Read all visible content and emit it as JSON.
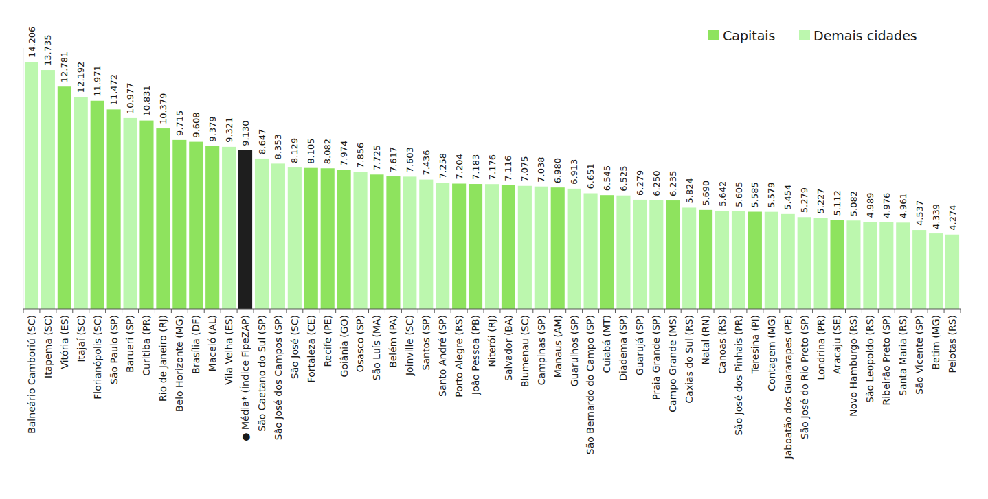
{
  "chart_data": {
    "type": "bar",
    "stacked": true,
    "data_labels": true,
    "tick_labels": "x",
    "legend": "top right",
    "ylim": [
      0,
      15000
    ],
    "categories": [
      "Balneário Camboriú (SC)",
      "Itapema (SC)",
      "Vitória (ES)",
      "Itajaí (SC)",
      "Florianópolis (SC)",
      "São Paulo (SP)",
      "Barueri (SP)",
      "Curitiba (PR)",
      "Rio de Janeiro (RJ)",
      "Belo Horizonte (MG)",
      "Brasília (DF)",
      "Maceió (AL)",
      "Vila Velha (ES)",
      "● Média* (Índice FipeZAP)",
      "São Caetano do Sul (SP)",
      "São José dos Campos (SP)",
      "São José (SC)",
      "Fortaleza (CE)",
      "Recife (PE)",
      "Goiânia (GO)",
      "Osasco (SP)",
      "São Luís (MA)",
      "Belém (PA)",
      "Joinville (SC)",
      "Santos (SP)",
      "Santo André (SP)",
      "Porto Alegre (RS)",
      "João Pessoa (PB)",
      "Niterói (RJ)",
      "Salvador (BA)",
      "Blumenau (SC)",
      "Campinas (SP)",
      "Manaus (AM)",
      "Guarulhos (SP)",
      "São Bernardo do Campo (SP)",
      "Cuiabá (MT)",
      "Diadema (SP)",
      "Guarujá (SP)",
      "Praia Grande (SP)",
      "Campo Grande (MS)",
      "Caxias do Sul (RS)",
      "Natal (RN)",
      "Canoas (RS)",
      "São José dos Pinhais (PR)",
      "Teresina (PI)",
      "Contagem (MG)",
      "Jaboatão dos Guararapes (PE)",
      "São José do Rio Preto (SP)",
      "Londrina (PR)",
      "Aracaju (SE)",
      "Novo Hamburgo (RS)",
      "São Leopoldo (RS)",
      "Ribeirão Preto (SP)",
      "Santa Maria (RS)",
      "São Vicente (SP)",
      "Betim (MG)",
      "Pelotas (RS)"
    ],
    "series": [
      {
        "name": "Capitais",
        "color": "#8ee35e",
        "values": [
          null,
          null,
          12781,
          null,
          11971,
          11472,
          null,
          10831,
          10379,
          9715,
          9608,
          9379,
          null,
          null,
          null,
          null,
          null,
          8105,
          8082,
          7974,
          null,
          7725,
          7617,
          null,
          null,
          null,
          7204,
          7183,
          null,
          7116,
          null,
          null,
          6980,
          null,
          null,
          6545,
          null,
          null,
          null,
          6235,
          null,
          5690,
          null,
          null,
          5585,
          null,
          null,
          null,
          null,
          5112,
          null,
          null,
          null,
          null,
          null,
          null,
          null
        ],
        "value_labels": [
          null,
          null,
          "12.781",
          null,
          "11.971",
          "11.472",
          null,
          "10.831",
          "10.379",
          "9.715",
          "9.608",
          "9.379",
          null,
          null,
          null,
          null,
          null,
          "8.105",
          "8.082",
          "7.974",
          null,
          "7.725",
          "7.617",
          null,
          null,
          null,
          "7.204",
          "7.183",
          null,
          "7.116",
          null,
          null,
          "6.980",
          null,
          null,
          "6.545",
          null,
          null,
          null,
          "6.235",
          null,
          "5.690",
          null,
          null,
          "5.585",
          null,
          null,
          null,
          null,
          "5.112",
          null,
          null,
          null,
          null,
          null,
          null,
          null
        ]
      },
      {
        "name": "Demais cidades",
        "color": "#bcf7ae",
        "values": [
          14206,
          13735,
          null,
          12192,
          null,
          null,
          10977,
          null,
          null,
          null,
          null,
          null,
          9321,
          null,
          8647,
          8353,
          8129,
          null,
          null,
          null,
          7856,
          null,
          null,
          7603,
          7436,
          7258,
          null,
          null,
          7176,
          null,
          7075,
          7038,
          null,
          6913,
          6651,
          null,
          6525,
          6279,
          6250,
          null,
          5824,
          null,
          5642,
          5605,
          null,
          5579,
          5454,
          5279,
          5227,
          null,
          5082,
          4989,
          4976,
          4961,
          4537,
          4339,
          4274
        ],
        "value_labels": [
          "14.206",
          "13.735",
          null,
          "12.192",
          null,
          null,
          "10.977",
          null,
          null,
          null,
          null,
          null,
          "9.321",
          null,
          "8.647",
          "8.353",
          "8.129",
          null,
          null,
          null,
          "7.856",
          null,
          null,
          "7.603",
          "7.436",
          "7.258",
          null,
          null,
          "7.176",
          null,
          "7.075",
          "7.038",
          null,
          "6.913",
          "6.651",
          null,
          "6.525",
          "6.279",
          "6.250",
          null,
          "5.824",
          null,
          "5.642",
          "5.605",
          null,
          "5.579",
          "5.454",
          "5.279",
          "5.227",
          null,
          "5.082",
          "4.989",
          "4.976",
          "4.961",
          "4.537",
          "4.339",
          "4.274"
        ]
      },
      {
        "color": "#1e1e1e",
        "values": [
          null,
          null,
          null,
          null,
          null,
          null,
          null,
          null,
          null,
          null,
          null,
          null,
          null,
          9130,
          null,
          null,
          null,
          null,
          null,
          null,
          null,
          null,
          null,
          null,
          null,
          null,
          null,
          null,
          null,
          null,
          null,
          null,
          null,
          null,
          null,
          null,
          null,
          null,
          null,
          null,
          null,
          null,
          null,
          null,
          null,
          null,
          null,
          null,
          null,
          null,
          null,
          null,
          null,
          null,
          null,
          null,
          null
        ],
        "value_labels": [
          null,
          null,
          null,
          null,
          null,
          null,
          null,
          null,
          null,
          null,
          null,
          null,
          null,
          "9.130",
          null,
          null,
          null,
          null,
          null,
          null,
          null,
          null,
          null,
          null,
          null,
          null,
          null,
          null,
          null,
          null,
          null,
          null,
          null,
          null,
          null,
          null,
          null,
          null,
          null,
          null,
          null,
          null,
          null,
          null,
          null,
          null,
          null,
          null,
          null,
          null,
          null,
          null,
          null,
          null,
          null,
          null,
          null
        ]
      }
    ]
  }
}
